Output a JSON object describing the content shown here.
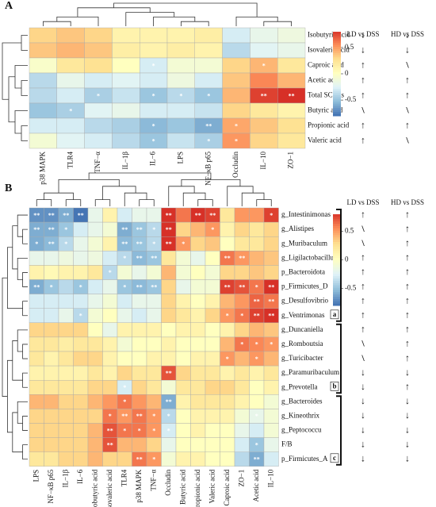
{
  "chart_data": [
    {
      "type": "heatmap",
      "panel_label": "A",
      "rows": [
        "Isobutyric acid",
        "Isovaleric acid",
        "Caproic acid",
        "Acetic acid",
        "Total SCFAs",
        "Butyric acid",
        "Propionic acid",
        "Valeric acid"
      ],
      "columns": [
        "p38 MAPK",
        "TLR4",
        "TNF−α",
        "IL−1β",
        "IL−6",
        "LPS",
        "NF−κB p65",
        "Occludin",
        "IL−10",
        "ZO−1"
      ],
      "values": [
        [
          0.3,
          0.35,
          0.3,
          0.1,
          0.1,
          0.1,
          0.15,
          -0.3,
          -0.2,
          -0.15
        ],
        [
          0.35,
          0.4,
          0.35,
          0.15,
          0.1,
          0.15,
          0.1,
          -0.4,
          -0.25,
          -0.2
        ],
        [
          -0.05,
          0.2,
          0.25,
          0,
          -0.3,
          -0.1,
          -0.1,
          0.3,
          0.4,
          0.2
        ],
        [
          -0.4,
          -0.2,
          -0.3,
          -0.25,
          -0.3,
          -0.15,
          -0.3,
          0.35,
          0.55,
          0.4
        ],
        [
          -0.4,
          -0.3,
          -0.45,
          -0.35,
          -0.5,
          -0.4,
          -0.5,
          0.4,
          0.75,
          0.8
        ],
        [
          -0.5,
          -0.45,
          -0.25,
          -0.2,
          -0.3,
          -0.3,
          -0.35,
          0.3,
          0.2,
          0.1
        ],
        [
          -0.3,
          -0.3,
          -0.4,
          -0.45,
          -0.55,
          -0.5,
          -0.6,
          0.45,
          0.35,
          0.25
        ],
        [
          -0.1,
          -0.25,
          -0.3,
          -0.4,
          -0.5,
          -0.35,
          -0.45,
          0.5,
          0.3,
          0.2
        ]
      ],
      "stars": [
        [
          null,
          null,
          null,
          null,
          null,
          null,
          null,
          null,
          null,
          null
        ],
        [
          null,
          null,
          null,
          null,
          null,
          null,
          null,
          null,
          null,
          null
        ],
        [
          null,
          null,
          null,
          null,
          "*",
          null,
          null,
          null,
          "*",
          null
        ],
        [
          null,
          null,
          null,
          null,
          null,
          null,
          null,
          null,
          null,
          null
        ],
        [
          null,
          null,
          "*",
          null,
          "*",
          "*",
          "*",
          null,
          "**",
          "**"
        ],
        [
          null,
          "*",
          null,
          null,
          null,
          null,
          null,
          null,
          null,
          null
        ],
        [
          null,
          null,
          null,
          null,
          "*",
          null,
          "**",
          "*",
          null,
          null
        ],
        [
          null,
          null,
          null,
          null,
          "*",
          null,
          "*",
          "*",
          null,
          null
        ]
      ],
      "zlim": [
        -0.8,
        0.8
      ],
      "zticks": [
        0.5,
        0,
        -0.5
      ],
      "colors": [
        "#4575b4",
        "#91bfdb",
        "#e0f3f8",
        "#ffffbf",
        "#fee090",
        "#fc8d59",
        "#d73027"
      ],
      "comparisons": [
        {
          "name": "LD vs DSS",
          "marks": [
            "↓",
            "↓",
            "↑",
            "↑",
            "↑",
            "\\",
            "↑",
            "↑"
          ]
        },
        {
          "name": "HD vs DSS",
          "marks": [
            "↓",
            "↓",
            "\\",
            "↑",
            "↑",
            "\\",
            "↑",
            "\\"
          ]
        }
      ],
      "mark_colors": {
        "↑": "#e02020",
        "↓": "#1f7a1f",
        "\\": "#222"
      }
    },
    {
      "type": "heatmap",
      "panel_label": "B",
      "rows": [
        "g_Intestinimonas",
        "g_Alistipes",
        "g_Muribaculum",
        "g_Ligilactobacillus",
        "p_Bacteroidota",
        "p_Firmicutes_D",
        "g_Desulfovibrio",
        "g_Ventrimonas",
        "g_Duncaniella",
        "g_Romboutsia",
        "g_Turicibacter",
        "g_Paramuribaculum",
        "g_Prevotella",
        "g_Bacteroides",
        "g_Kineothrix",
        "g_Peptococcu",
        "F/B",
        "p_Firmicutes_A"
      ],
      "columns": [
        "LPS",
        "NF−κB p65",
        "IL−1β",
        "IL−6",
        "Isobutyric acid",
        "Isovaleric acid",
        "TLR4",
        "p38 MAPK",
        "TNF−α",
        "Occludin",
        "Butyric acid",
        "Propionic acid",
        "Valeric acid",
        "Caproic acid",
        "ZO−1",
        "Acetic acid",
        "IL−10"
      ],
      "values": [
        [
          -0.7,
          -0.7,
          -0.6,
          -0.8,
          -0.2,
          0.1,
          -0.3,
          -0.2,
          -0.2,
          0.8,
          0.6,
          0.85,
          0.75,
          0.2,
          0.5,
          0.5,
          0.75
        ],
        [
          -0.6,
          -0.6,
          -0.5,
          -0.3,
          -0.2,
          -0.1,
          -0.6,
          -0.5,
          -0.4,
          0.85,
          0.3,
          0.4,
          0.5,
          0.1,
          0.3,
          0.2,
          0.3
        ],
        [
          -0.6,
          -0.55,
          -0.4,
          -0.2,
          -0.1,
          0.1,
          -0.55,
          -0.5,
          -0.4,
          0.8,
          0.5,
          0.3,
          0.35,
          0,
          0.2,
          0.2,
          0.3
        ],
        [
          -0.2,
          -0.2,
          -0.15,
          -0.2,
          -0.15,
          -0.3,
          -0.4,
          -0.55,
          -0.5,
          0.2,
          -0.1,
          -0.2,
          0,
          0.6,
          0.5,
          0.4,
          0.35
        ],
        [
          0.1,
          0.05,
          0.1,
          0.1,
          0.2,
          -0.4,
          -0.1,
          -0.2,
          -0.1,
          0.4,
          -0.1,
          0,
          -0.1,
          0.3,
          0.3,
          0.35,
          0.3
        ],
        [
          -0.6,
          -0.5,
          -0.4,
          -0.5,
          -0.3,
          -0.2,
          -0.5,
          -0.55,
          -0.5,
          0.3,
          -0.2,
          -0.1,
          -0.1,
          0.75,
          0.7,
          0.6,
          0.8
        ],
        [
          -0.3,
          -0.3,
          -0.3,
          -0.3,
          -0.2,
          -0.1,
          -0.3,
          -0.2,
          -0.2,
          0.3,
          0.1,
          0,
          0.1,
          0.4,
          0.5,
          0.65,
          0.6
        ],
        [
          -0.3,
          -0.3,
          -0.2,
          -0.4,
          -0.1,
          0,
          -0.2,
          -0.3,
          -0.2,
          0.3,
          0.2,
          0.1,
          0.3,
          0.5,
          0.6,
          0.75,
          0.8
        ],
        [
          0.3,
          0.3,
          0.3,
          0.3,
          0,
          -0.2,
          0.1,
          0.1,
          0.1,
          0,
          0.1,
          0.1,
          0,
          0.1,
          0.3,
          0.4,
          0.35
        ],
        [
          0.2,
          0.2,
          0.15,
          0.2,
          0.2,
          0.1,
          -0.1,
          0,
          0,
          0.1,
          0,
          0,
          0,
          0.4,
          0.6,
          0.55,
          0.5
        ],
        [
          0.2,
          0.1,
          0.2,
          0.3,
          0.3,
          0.1,
          0,
          0,
          0.1,
          0.1,
          0,
          0.1,
          0.1,
          0.5,
          0.4,
          0.5,
          0.4
        ],
        [
          0.1,
          0.1,
          0.1,
          0.1,
          0.2,
          0.1,
          0.3,
          0.2,
          0.2,
          0.7,
          0.3,
          0.2,
          0.2,
          0.1,
          0.2,
          0.1,
          0.2
        ],
        [
          0.2,
          0.2,
          0.2,
          0.2,
          0.3,
          0.3,
          -0.3,
          0.3,
          0.2,
          -0.1,
          0.2,
          0.2,
          0.3,
          0.3,
          0.2,
          0,
          0.1
        ],
        [
          0.4,
          0.4,
          0.3,
          0.3,
          0.4,
          0.5,
          0.6,
          0.5,
          0.4,
          -0.6,
          0.1,
          0.2,
          0.2,
          0.2,
          0.1,
          0,
          -0.1
        ],
        [
          0.3,
          0.3,
          0.3,
          0.3,
          0.3,
          0.6,
          0.5,
          0.6,
          0.5,
          -0.4,
          0,
          0.1,
          0.1,
          0.1,
          -0.1,
          -0.2,
          -0.1
        ],
        [
          0.3,
          0.3,
          0.3,
          0.3,
          0.4,
          0.7,
          0.6,
          0.6,
          0.5,
          -0.3,
          0,
          0.1,
          0,
          0,
          -0.2,
          -0.3,
          -0.1
        ],
        [
          0.3,
          0.3,
          0.3,
          0.3,
          0.4,
          0.7,
          0.4,
          0.4,
          0.3,
          -0.2,
          0,
          0,
          0,
          0,
          -0.3,
          -0.5,
          -0.2
        ],
        [
          0.2,
          0.2,
          0.3,
          0.3,
          0.4,
          0.3,
          0.3,
          0.6,
          0.5,
          -0.1,
          0.1,
          0.1,
          0,
          0,
          -0.4,
          -0.6,
          -0.3
        ]
      ],
      "stars": [
        [
          "**",
          "**",
          "**",
          "**",
          null,
          null,
          null,
          null,
          null,
          "**",
          null,
          "**",
          "**",
          null,
          null,
          null,
          "*"
        ],
        [
          "**",
          "**",
          "*",
          null,
          null,
          null,
          "**",
          "**",
          "*",
          "**",
          null,
          null,
          "*",
          null,
          null,
          null,
          null
        ],
        [
          "*",
          "**",
          "*",
          null,
          null,
          null,
          "**",
          "**",
          "*",
          "**",
          "*",
          null,
          null,
          null,
          null,
          null,
          null
        ],
        [
          null,
          null,
          null,
          null,
          null,
          null,
          "*",
          "**",
          "**",
          null,
          null,
          null,
          null,
          "**",
          "**",
          null,
          null
        ],
        [
          null,
          null,
          null,
          null,
          null,
          "*",
          null,
          null,
          null,
          null,
          null,
          null,
          null,
          null,
          null,
          null,
          null
        ],
        [
          "**",
          "*",
          null,
          "*",
          null,
          null,
          "*",
          "**",
          "**",
          null,
          null,
          null,
          null,
          "**",
          "**",
          "*",
          "**"
        ],
        [
          null,
          null,
          null,
          null,
          null,
          null,
          null,
          null,
          null,
          null,
          null,
          null,
          null,
          null,
          null,
          "**",
          "**"
        ],
        [
          null,
          null,
          null,
          "*",
          null,
          null,
          null,
          null,
          null,
          null,
          null,
          null,
          null,
          "*",
          "*",
          "**",
          "**"
        ],
        [
          null,
          null,
          null,
          null,
          null,
          null,
          null,
          null,
          null,
          null,
          null,
          null,
          null,
          null,
          null,
          null,
          null
        ],
        [
          null,
          null,
          null,
          null,
          null,
          null,
          null,
          null,
          null,
          null,
          null,
          null,
          null,
          null,
          "*",
          "*",
          "*"
        ],
        [
          null,
          null,
          null,
          null,
          null,
          null,
          null,
          null,
          null,
          null,
          null,
          null,
          null,
          "*",
          null,
          "*",
          null
        ],
        [
          null,
          null,
          null,
          null,
          null,
          null,
          null,
          null,
          null,
          "**",
          null,
          null,
          null,
          null,
          null,
          null,
          null
        ],
        [
          null,
          null,
          null,
          null,
          null,
          null,
          "*",
          null,
          null,
          null,
          null,
          null,
          null,
          null,
          null,
          null,
          null
        ],
        [
          null,
          null,
          null,
          null,
          null,
          null,
          "*",
          null,
          null,
          "**",
          null,
          null,
          null,
          null,
          null,
          null,
          null
        ],
        [
          null,
          null,
          null,
          null,
          null,
          "*",
          "**",
          "**",
          "*",
          "*",
          null,
          null,
          null,
          null,
          null,
          "*",
          null
        ],
        [
          null,
          null,
          null,
          null,
          null,
          "**",
          "*",
          "*",
          "*",
          "*",
          null,
          null,
          null,
          null,
          null,
          null,
          null
        ],
        [
          null,
          null,
          null,
          null,
          null,
          "**",
          null,
          null,
          null,
          null,
          null,
          null,
          null,
          null,
          null,
          "*",
          null
        ],
        [
          null,
          null,
          null,
          null,
          null,
          null,
          null,
          "**",
          "*",
          null,
          null,
          null,
          null,
          null,
          null,
          "**",
          null
        ]
      ],
      "zlim": [
        -0.8,
        0.8
      ],
      "zticks": [
        0.5,
        0,
        -0.5
      ],
      "colors": [
        "#4575b4",
        "#91bfdb",
        "#e0f3f8",
        "#ffffbf",
        "#fee090",
        "#fc8d59",
        "#d73027"
      ],
      "groups": [
        "a",
        "b",
        "c"
      ],
      "comparisons": [
        {
          "name": "LD vs DSS",
          "marks": [
            "↑",
            "\\",
            "\\",
            "↑",
            "↑",
            "↑",
            "↑",
            "↑",
            "↑",
            "\\",
            "\\",
            "↓",
            "↓",
            "↓",
            "↓",
            "↓",
            "↓",
            "↓"
          ]
        },
        {
          "name": "HD vs DSS",
          "marks": [
            "↑",
            "↑",
            "↑",
            "↑",
            "↑",
            "↑",
            "↑",
            "↑",
            "↑",
            "↑",
            "↑",
            "↓",
            "↑",
            "↓",
            "↓",
            "↓",
            "↓",
            "↓"
          ]
        }
      ],
      "mark_colors": {
        "↑": "#e02020",
        "↓": "#1f7a1f",
        "\\": "#222"
      }
    }
  ]
}
